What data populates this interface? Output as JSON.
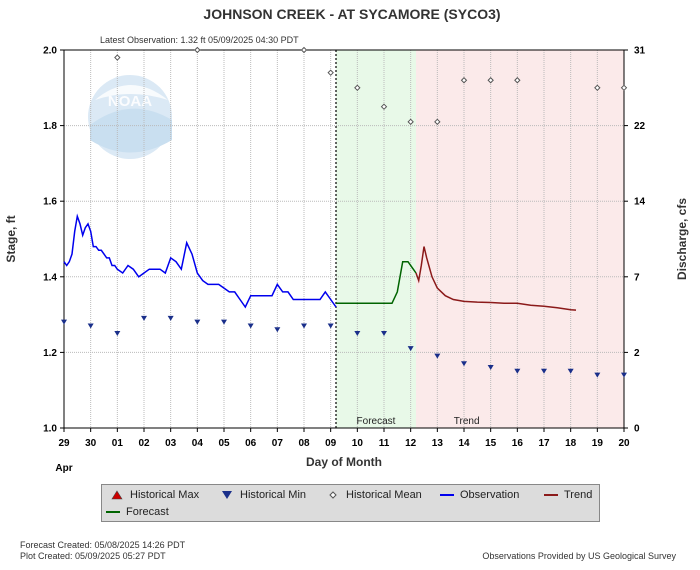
{
  "colors": {
    "observation": "#0000ee",
    "forecast": "#006400",
    "trend": "#8b1a1a",
    "forecast_bg": "#e8f9e8",
    "trend_bg": "#fbeaea",
    "hist_max": "#cc0000",
    "hist_min": "#1a2f8a",
    "hist_mean": "#555555"
  },
  "chart_data": {
    "type": "line",
    "title": "JOHNSON CREEK - AT SYCAMORE  (SYCO3)",
    "subtitle": "Latest Observation: 1.32 ft 05/09/2025 04:30 PDT",
    "xlabel": "Day of Month",
    "ylabel": "Stage, ft",
    "y2label": "Discharge, cfs",
    "ylim": [
      1.0,
      2.0
    ],
    "xlim": [
      0,
      21
    ],
    "x_tick_labels": [
      "29",
      "30",
      "01",
      "02",
      "03",
      "04",
      "05",
      "06",
      "07",
      "08",
      "09",
      "10",
      "11",
      "12",
      "13",
      "14",
      "15",
      "16",
      "17",
      "18",
      "19",
      "20"
    ],
    "x_month_label": "Apr",
    "y_ticks": [
      1.0,
      1.2,
      1.4,
      1.6,
      1.8,
      2.0
    ],
    "y_tick_labels": [
      "1.0",
      "1.2",
      "1.4",
      "1.6",
      "1.8",
      "2.0"
    ],
    "y2_ticks": [
      {
        "stage": 1.0,
        "label": "0"
      },
      {
        "stage": 1.2,
        "label": "2"
      },
      {
        "stage": 1.4,
        "label": "7"
      },
      {
        "stage": 1.6,
        "label": "14"
      },
      {
        "stage": 1.8,
        "label": "22"
      },
      {
        "stage": 2.0,
        "label": "31"
      }
    ],
    "latest_observation_x": 10.2,
    "forecast_region": {
      "start": 10.2,
      "end": 13.2,
      "label": "Forecast"
    },
    "trend_region": {
      "start": 13.2,
      "end": 21,
      "label": "Trend"
    },
    "series": [
      {
        "name": "Observation",
        "x": [
          0.0,
          0.1,
          0.2,
          0.3,
          0.4,
          0.5,
          0.6,
          0.7,
          0.8,
          0.9,
          1.0,
          1.1,
          1.2,
          1.3,
          1.4,
          1.5,
          1.6,
          1.7,
          1.8,
          1.9,
          2.0,
          2.2,
          2.4,
          2.6,
          2.8,
          3.0,
          3.2,
          3.4,
          3.6,
          3.8,
          4.0,
          4.2,
          4.4,
          4.6,
          4.8,
          5.0,
          5.2,
          5.4,
          5.6,
          5.8,
          6.0,
          6.2,
          6.4,
          6.6,
          6.8,
          7.0,
          7.2,
          7.4,
          7.6,
          7.8,
          8.0,
          8.2,
          8.4,
          8.6,
          8.8,
          9.0,
          9.2,
          9.4,
          9.6,
          9.8,
          10.0,
          10.2
        ],
        "values": [
          1.44,
          1.43,
          1.44,
          1.46,
          1.52,
          1.56,
          1.54,
          1.51,
          1.53,
          1.54,
          1.52,
          1.48,
          1.48,
          1.47,
          1.47,
          1.46,
          1.45,
          1.45,
          1.43,
          1.43,
          1.42,
          1.41,
          1.43,
          1.42,
          1.4,
          1.41,
          1.42,
          1.42,
          1.42,
          1.41,
          1.45,
          1.44,
          1.42,
          1.49,
          1.46,
          1.41,
          1.39,
          1.38,
          1.38,
          1.38,
          1.37,
          1.36,
          1.36,
          1.34,
          1.32,
          1.35,
          1.35,
          1.35,
          1.35,
          1.35,
          1.38,
          1.36,
          1.36,
          1.34,
          1.34,
          1.34,
          1.34,
          1.34,
          1.34,
          1.36,
          1.34,
          1.32
        ]
      },
      {
        "name": "Forecast",
        "x": [
          10.2,
          10.5,
          11.0,
          11.5,
          12.0,
          12.3,
          12.5,
          12.7,
          12.9,
          13.1,
          13.2
        ],
        "values": [
          1.33,
          1.33,
          1.33,
          1.33,
          1.33,
          1.33,
          1.36,
          1.44,
          1.44,
          1.42,
          1.41
        ]
      },
      {
        "name": "Trend",
        "x": [
          13.2,
          13.3,
          13.4,
          13.5,
          13.6,
          13.8,
          14.0,
          14.3,
          14.6,
          15.0,
          15.5,
          16.0,
          16.5,
          17.0,
          17.5,
          18.0,
          18.5,
          19.0,
          19.2
        ],
        "values": [
          1.41,
          1.39,
          1.43,
          1.48,
          1.45,
          1.4,
          1.37,
          1.35,
          1.34,
          1.335,
          1.333,
          1.332,
          1.33,
          1.33,
          1.325,
          1.322,
          1.318,
          1.313,
          1.312
        ]
      },
      {
        "name": "Historical Mean",
        "x": [
          2.0,
          5.0,
          9.0,
          10.0,
          11.0,
          12.0,
          13.0,
          14.0,
          15.0,
          16.0,
          17.0,
          20.0,
          21.0
        ],
        "values": [
          1.98,
          2.0,
          2.0,
          1.94,
          1.9,
          1.85,
          1.81,
          1.81,
          1.92,
          1.92,
          1.92,
          1.9,
          1.9
        ]
      },
      {
        "name": "Historical Min",
        "x": [
          0.0,
          1.0,
          2.0,
          3.0,
          4.0,
          5.0,
          6.0,
          7.0,
          8.0,
          9.0,
          10.0,
          11.0,
          12.0,
          13.0,
          14.0,
          15.0,
          16.0,
          17.0,
          18.0,
          19.0,
          20.0,
          21.0
        ],
        "values": [
          1.28,
          1.27,
          1.25,
          1.29,
          1.29,
          1.28,
          1.28,
          1.27,
          1.26,
          1.27,
          1.27,
          1.25,
          1.25,
          1.21,
          1.19,
          1.17,
          1.16,
          1.15,
          1.15,
          1.15,
          1.14,
          1.14
        ]
      }
    ]
  },
  "legend": {
    "items": [
      {
        "label": "Historical Max",
        "symbol": "triangle-up"
      },
      {
        "label": "Historical Min",
        "symbol": "triangle-down"
      },
      {
        "label": "Historical Mean",
        "symbol": "diamond"
      },
      {
        "label": "Observation",
        "symbol": "line"
      },
      {
        "label": "Trend",
        "symbol": "line"
      },
      {
        "label": "Forecast",
        "symbol": "line"
      }
    ]
  },
  "footer": {
    "forecast_created": "Forecast Created: 05/08/2025 14:26 PDT",
    "plot_created": "Plot Created: 05/09/2025 05:27 PDT",
    "provider": "Observations Provided by US Geological Survey"
  },
  "logo_text": "NOAA"
}
